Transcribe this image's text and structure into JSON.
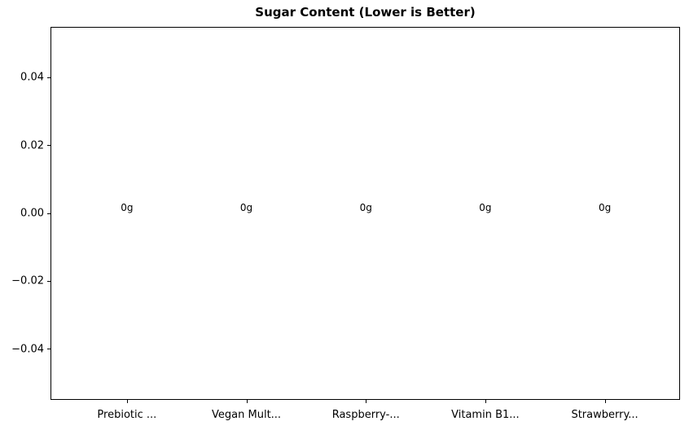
{
  "chart_data": {
    "type": "bar",
    "title": "Sugar Content (Lower is Better)",
    "categories": [
      "Prebiotic ...",
      "Vegan Mult...",
      "Raspberry-...",
      "Vitamin B1...",
      "Strawberry..."
    ],
    "values": [
      0,
      0,
      0,
      0,
      0
    ],
    "bar_labels": [
      "0g",
      "0g",
      "0g",
      "0g",
      "0g"
    ],
    "xlabel": "",
    "ylabel": "",
    "y_ticks": [
      0.04,
      0.02,
      0,
      -0.02,
      -0.04
    ],
    "y_tick_labels": [
      "0.04",
      "0.02",
      "0.00",
      "−0.02",
      "−0.04"
    ],
    "ylim": [
      -0.055,
      0.055
    ],
    "xlim": [
      -0.64,
      4.63
    ],
    "grid": false,
    "legend_position": "none",
    "colors": {
      "background": "#ffffff",
      "text": "#000000",
      "axis": "#000000"
    }
  }
}
